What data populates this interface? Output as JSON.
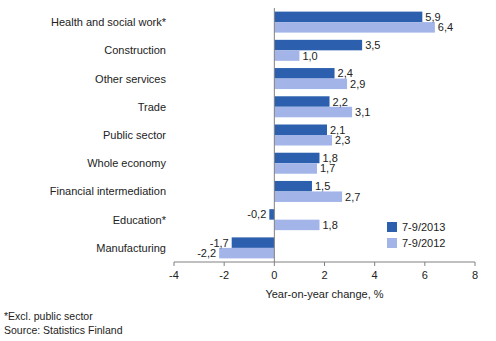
{
  "chart_data": {
    "type": "bar",
    "orientation": "horizontal",
    "categories": [
      "Health and social work*",
      "Construction",
      "Other services",
      "Trade",
      "Public sector",
      "Whole economy",
      "Financial intermediation",
      "Education*",
      "Manufacturing"
    ],
    "series": [
      {
        "name": "7-9/2013",
        "color": "#2c5fae",
        "values": [
          5.9,
          3.5,
          2.4,
          2.2,
          2.1,
          1.8,
          1.5,
          -0.2,
          -1.7
        ],
        "value_labels": [
          "5,9",
          "3,5",
          "2,4",
          "2,2",
          "2,1",
          "1,8",
          "1,5",
          "-0,2",
          "-1,7"
        ]
      },
      {
        "name": "7-9/2012",
        "color": "#a3b5e8",
        "values": [
          6.4,
          1.0,
          2.9,
          3.1,
          2.3,
          1.7,
          2.7,
          1.8,
          -2.2
        ],
        "value_labels": [
          "6,4",
          "1,0",
          "2,9",
          "3,1",
          "2,3",
          "1,7",
          "2,7",
          "1,8",
          "-2,2"
        ]
      }
    ],
    "xlim": [
      -4,
      8
    ],
    "xticks": [
      -4,
      -2,
      0,
      2,
      4,
      6,
      8
    ],
    "x_label": "Year-on-year change, %",
    "notes": [
      "*Excl. public sector",
      "Source: Statistics Finland"
    ],
    "data_labels": true,
    "grid": false,
    "legend": "lower right"
  }
}
